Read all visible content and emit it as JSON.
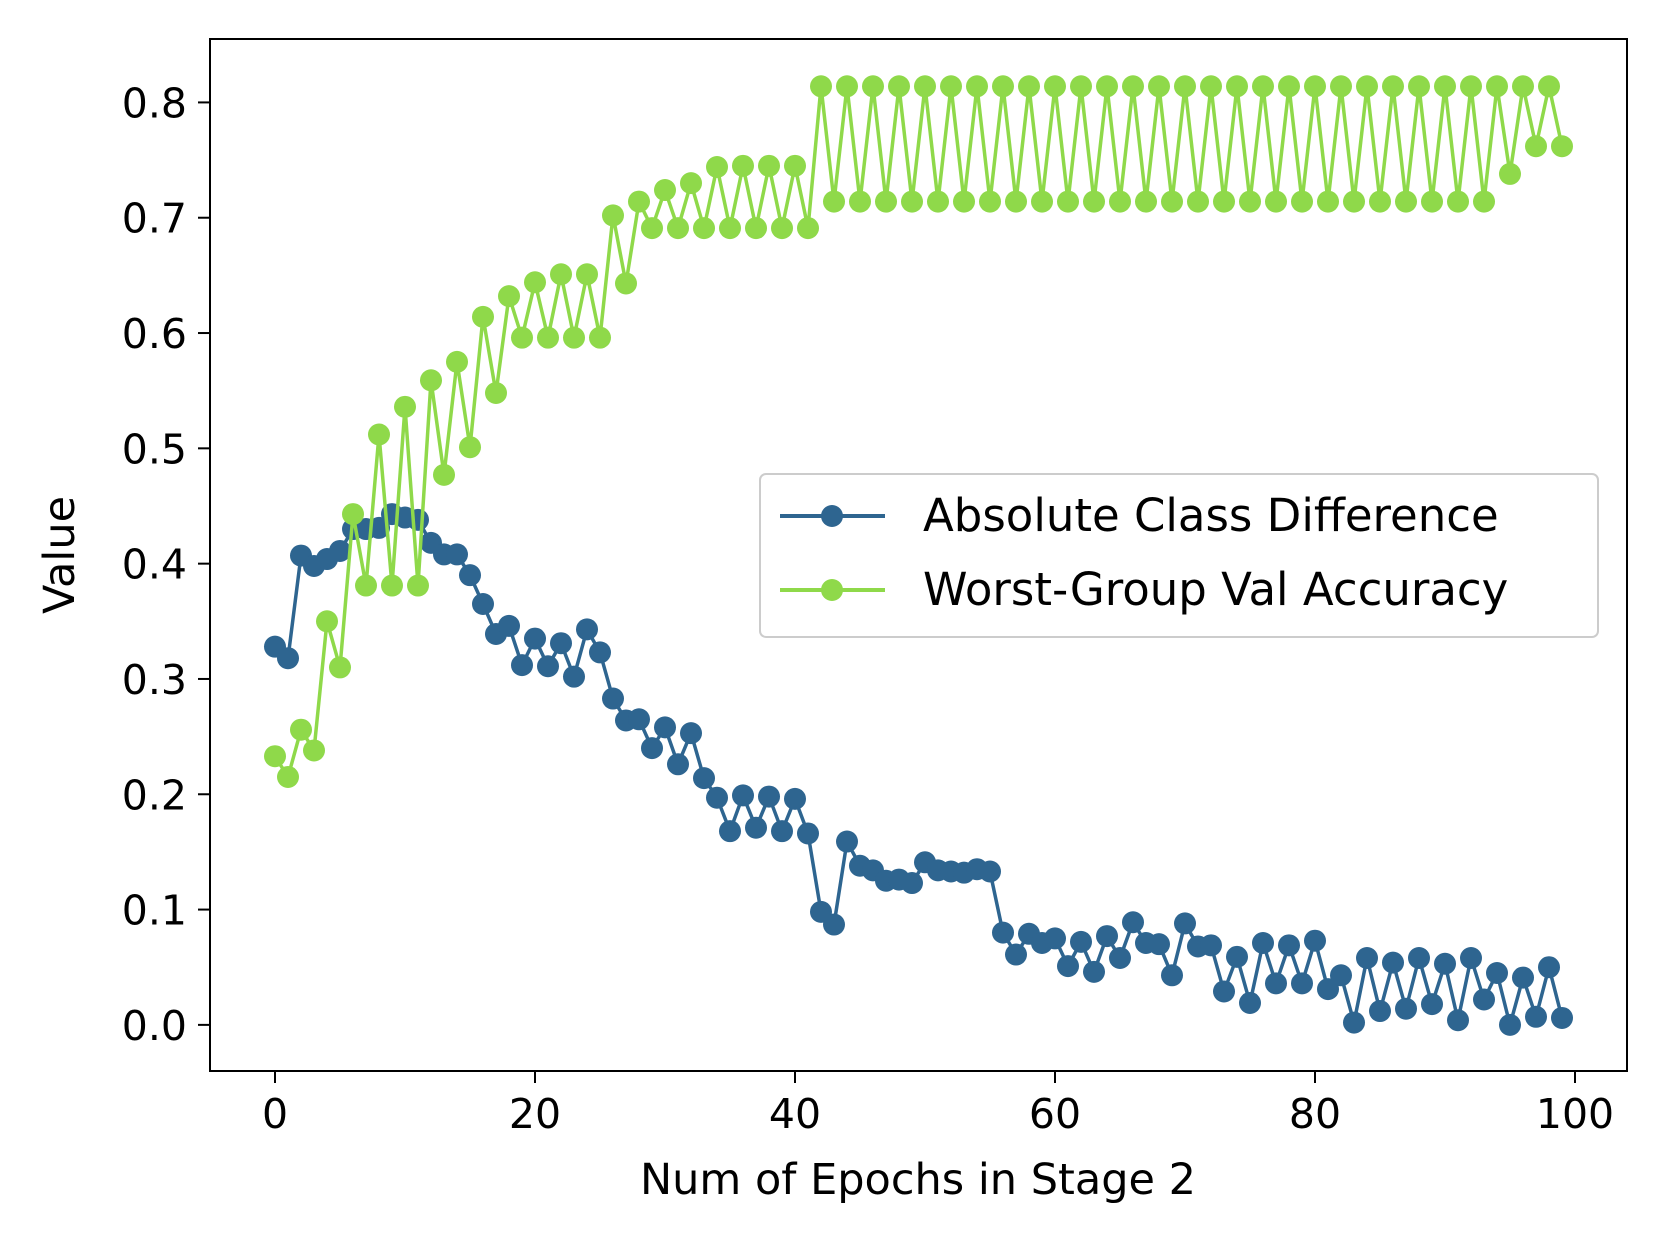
{
  "chart_data": {
    "type": "line",
    "title": "",
    "xlabel": "Num of Epochs in Stage 2",
    "ylabel": "Value",
    "xlim": [
      -5,
      104
    ],
    "ylim": [
      -0.04,
      0.855
    ],
    "xticks": [
      0,
      20,
      40,
      60,
      80,
      100
    ],
    "xtick_labels": [
      "0",
      "20",
      "40",
      "60",
      "80",
      "100"
    ],
    "yticks": [
      0.0,
      0.1,
      0.2,
      0.3,
      0.4,
      0.5,
      0.6,
      0.7,
      0.8
    ],
    "ytick_labels": [
      "0.0",
      "0.1",
      "0.2",
      "0.3",
      "0.4",
      "0.5",
      "0.6",
      "0.7",
      "0.8"
    ],
    "grid": false,
    "legend_position": "center-right",
    "series": [
      {
        "name": "Absolute Class Difference",
        "color": "#2e6590",
        "marker": "circle",
        "values": [
          0.328,
          0.318,
          0.407,
          0.398,
          0.404,
          0.411,
          0.43,
          0.43,
          0.431,
          0.443,
          0.44,
          0.438,
          0.418,
          0.408,
          0.408,
          0.39,
          0.365,
          0.339,
          0.346,
          0.312,
          0.335,
          0.311,
          0.331,
          0.302,
          0.343,
          0.323,
          0.283,
          0.264,
          0.265,
          0.24,
          0.258,
          0.226,
          0.253,
          0.214,
          0.197,
          0.168,
          0.199,
          0.171,
          0.198,
          0.168,
          0.196,
          0.166,
          0.098,
          0.087,
          0.159,
          0.138,
          0.134,
          0.125,
          0.126,
          0.123,
          0.141,
          0.134,
          0.133,
          0.132,
          0.135,
          0.133,
          0.08,
          0.061,
          0.079,
          0.071,
          0.075,
          0.051,
          0.072,
          0.046,
          0.077,
          0.058,
          0.089,
          0.071,
          0.07,
          0.043,
          0.088,
          0.068,
          0.069,
          0.029,
          0.059,
          0.019,
          0.071,
          0.036,
          0.069,
          0.036,
          0.073,
          0.031,
          0.043,
          0.002,
          0.058,
          0.012,
          0.054,
          0.014,
          0.058,
          0.018,
          0.053,
          0.004,
          0.058,
          0.022,
          0.045,
          0.0,
          0.041,
          0.007,
          0.05,
          0.006
        ]
      },
      {
        "name": "Worst-Group Val Accuracy",
        "color": "#8fd94a",
        "marker": "circle",
        "values": [
          0.233,
          0.215,
          0.256,
          0.238,
          0.35,
          0.31,
          0.443,
          0.381,
          0.512,
          0.381,
          0.536,
          0.381,
          0.559,
          0.477,
          0.575,
          0.501,
          0.614,
          0.548,
          0.632,
          0.596,
          0.644,
          0.596,
          0.651,
          0.596,
          0.651,
          0.596,
          0.702,
          0.643,
          0.714,
          0.691,
          0.724,
          0.691,
          0.73,
          0.691,
          0.744,
          0.691,
          0.745,
          0.691,
          0.745,
          0.691,
          0.745,
          0.691,
          0.814,
          0.714,
          0.814,
          0.714,
          0.814,
          0.714,
          0.814,
          0.714,
          0.814,
          0.714,
          0.814,
          0.714,
          0.814,
          0.714,
          0.814,
          0.714,
          0.814,
          0.714,
          0.814,
          0.714,
          0.814,
          0.714,
          0.814,
          0.714,
          0.814,
          0.714,
          0.814,
          0.714,
          0.814,
          0.714,
          0.814,
          0.714,
          0.814,
          0.714,
          0.814,
          0.714,
          0.814,
          0.714,
          0.814,
          0.714,
          0.814,
          0.714,
          0.814,
          0.714,
          0.814,
          0.714,
          0.814,
          0.714,
          0.814,
          0.714,
          0.814,
          0.714,
          0.814,
          0.738,
          0.814,
          0.762,
          0.814,
          0.762
        ]
      }
    ]
  }
}
